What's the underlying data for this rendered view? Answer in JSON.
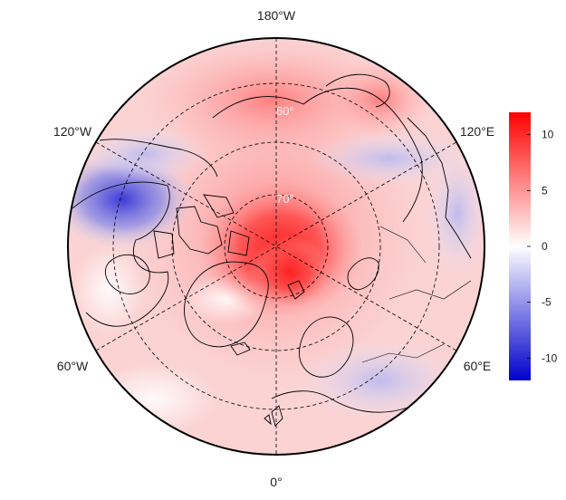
{
  "map": {
    "projection": "north polar stereographic",
    "longitude_labels": {
      "top": "180°W",
      "upper_left": "120°W",
      "upper_right": "120°E",
      "lower_left": "60°W",
      "lower_right": "60°E",
      "bottom": "0°"
    },
    "latitude_labels": [
      "60°",
      "70°"
    ],
    "graticule_style": "dashed",
    "coastlines": true,
    "country_borders": true
  },
  "colorbar": {
    "min": -12,
    "max": 12,
    "ticks": [
      "10",
      "5",
      "0",
      "-5",
      "-10"
    ],
    "tick_values": [
      10,
      5,
      0,
      -5,
      -10
    ],
    "colors": {
      "low": "#0000cc",
      "mid": "#ffffff",
      "high": "#ff0000"
    }
  },
  "anomaly_field": {
    "description_of_pattern": "warm anomaly centered over the Arctic, cold over northwestern North America",
    "regions": [
      {
        "name": "arctic-core",
        "value": 11
      },
      {
        "name": "arctic-ring",
        "value": 5
      },
      {
        "name": "siberia-east",
        "value": 4
      },
      {
        "name": "alaska-canada",
        "value": -8
      },
      {
        "name": "greenland-interior",
        "value": 1
      },
      {
        "name": "eastern-europe",
        "value": -3
      },
      {
        "name": "east-asia",
        "value": -4
      }
    ]
  }
}
